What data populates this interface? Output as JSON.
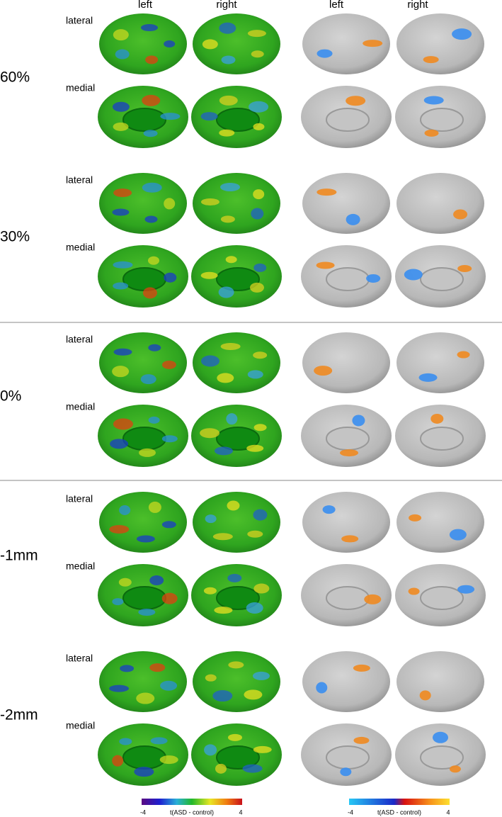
{
  "columns": [
    "left",
    "right",
    "left",
    "right"
  ],
  "rows": [
    {
      "label": "60%",
      "views": [
        "lateral",
        "medial"
      ]
    },
    {
      "label": "30%",
      "views": [
        "lateral",
        "medial"
      ]
    },
    {
      "label": "0%",
      "views": [
        "lateral",
        "medial"
      ]
    },
    {
      "label": "-1mm",
      "views": [
        "lateral",
        "medial"
      ]
    },
    {
      "label": "-2mm",
      "views": [
        "lateral",
        "medial"
      ]
    }
  ],
  "colorbars": [
    {
      "min": "-4",
      "title": "t(ASD - control)",
      "max": "4"
    },
    {
      "min": "-4",
      "title": "t(ASD - control)",
      "max": "4"
    }
  ]
}
